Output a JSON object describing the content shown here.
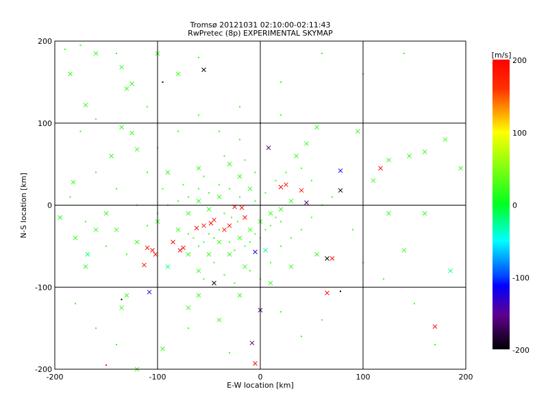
{
  "chart_data": {
    "type": "scatter",
    "title": "Tromsø 20121031 02:10:00-02:11:43",
    "subtitle": "RwPretec (8p) EXPERIMENTAL SKYMAP",
    "xlabel": "E-W location [km]",
    "ylabel": "N-S location [km]",
    "xlim": [
      -200,
      200
    ],
    "ylim": [
      -200,
      200
    ],
    "xticks": [
      -200,
      -100,
      0,
      100,
      200
    ],
    "yticks": [
      -200,
      -100,
      0,
      100,
      200
    ],
    "xtick_labels": [
      "-200",
      "-100",
      "0",
      "100",
      "200"
    ],
    "ytick_labels": [
      "-200",
      "-100",
      "0",
      "100",
      "200"
    ],
    "grid": true,
    "colorbar": {
      "label": "[m/s]",
      "range": [
        -200,
        200
      ],
      "ticks": [
        200,
        100,
        0,
        -100,
        -200
      ],
      "tick_labels": [
        "200",
        "100",
        "0",
        "-100",
        "-200"
      ]
    },
    "point_format": [
      "x_km",
      "y_km",
      "velocity_m_s",
      "marker"
    ],
    "points": [
      [
        -110,
        -52,
        190,
        "x"
      ],
      [
        -105,
        -55,
        195,
        "x"
      ],
      [
        -102,
        -60,
        185,
        "x"
      ],
      [
        -78,
        -55,
        190,
        "x"
      ],
      [
        -75,
        -52,
        195,
        "x"
      ],
      [
        -85,
        -45,
        190,
        "x"
      ],
      [
        -62,
        -28,
        190,
        "x"
      ],
      [
        -55,
        -25,
        185,
        "x"
      ],
      [
        -48,
        -22,
        195,
        "x"
      ],
      [
        -45,
        -18,
        190,
        "x"
      ],
      [
        -35,
        -30,
        190,
        "x"
      ],
      [
        -30,
        -25,
        195,
        "x"
      ],
      [
        -25,
        -2,
        190,
        "x"
      ],
      [
        -18,
        -3,
        185,
        "x"
      ],
      [
        -15,
        -15,
        190,
        "x"
      ],
      [
        20,
        22,
        195,
        "x"
      ],
      [
        25,
        25,
        190,
        "x"
      ],
      [
        40,
        18,
        190,
        "x"
      ],
      [
        45,
        3,
        -160,
        "x"
      ],
      [
        70,
        -65,
        190,
        "x"
      ],
      [
        65,
        -107,
        190,
        "x"
      ],
      [
        -113,
        -73,
        190,
        "x"
      ],
      [
        117,
        45,
        190,
        "x"
      ],
      [
        170,
        -148,
        190,
        "x"
      ],
      [
        -5,
        -193,
        195,
        "x"
      ],
      [
        -8,
        -168,
        -160,
        "x"
      ],
      [
        0,
        -128,
        -160,
        "x"
      ],
      [
        -108,
        -106,
        -120,
        "x"
      ],
      [
        -55,
        165,
        -200,
        "x"
      ],
      [
        78,
        18,
        -200,
        "x"
      ],
      [
        65,
        -65,
        -200,
        "x"
      ],
      [
        -45,
        -95,
        -200,
        "x"
      ],
      [
        -5,
        -57,
        -120,
        "x"
      ],
      [
        78,
        42,
        -110,
        "x"
      ],
      [
        8,
        70,
        -170,
        "x"
      ],
      [
        -160,
        185,
        20,
        "x"
      ],
      [
        -150,
        -195,
        190,
        "dot"
      ],
      [
        -135,
        -115,
        -200,
        "dot"
      ],
      [
        -95,
        150,
        -200,
        "dot"
      ],
      [
        78,
        -105,
        -200,
        "dot"
      ],
      [
        -185,
        160,
        20,
        "x"
      ],
      [
        -170,
        122,
        25,
        "x"
      ],
      [
        -125,
        148,
        15,
        "x"
      ],
      [
        -130,
        142,
        20,
        "x"
      ],
      [
        -135,
        168,
        20,
        "x"
      ],
      [
        -100,
        185,
        20,
        "x"
      ],
      [
        -80,
        160,
        25,
        "x"
      ],
      [
        -140,
        185,
        15,
        "dot"
      ],
      [
        -175,
        90,
        20,
        "dot"
      ],
      [
        -160,
        105,
        25,
        "dot"
      ],
      [
        -135,
        95,
        20,
        "x"
      ],
      [
        -125,
        88,
        20,
        "x"
      ],
      [
        -120,
        68,
        20,
        "x"
      ],
      [
        -145,
        60,
        20,
        "x"
      ],
      [
        -182,
        28,
        20,
        "x"
      ],
      [
        -195,
        -15,
        10,
        "x"
      ],
      [
        -180,
        -40,
        20,
        "x"
      ],
      [
        -170,
        -75,
        15,
        "x"
      ],
      [
        -168,
        -60,
        -20,
        "x"
      ],
      [
        -135,
        -125,
        20,
        "x"
      ],
      [
        -130,
        -110,
        20,
        "x"
      ],
      [
        -95,
        -175,
        20,
        "x"
      ],
      [
        -120,
        -200,
        25,
        "x"
      ],
      [
        -60,
        -110,
        20,
        "x"
      ],
      [
        -40,
        -140,
        25,
        "x"
      ],
      [
        -70,
        -125,
        20,
        "x"
      ],
      [
        -20,
        -110,
        20,
        "x"
      ],
      [
        10,
        -95,
        20,
        "x"
      ],
      [
        30,
        -75,
        20,
        "x"
      ],
      [
        55,
        -60,
        20,
        "x"
      ],
      [
        95,
        90,
        20,
        "x"
      ],
      [
        110,
        30,
        25,
        "x"
      ],
      [
        125,
        55,
        20,
        "x"
      ],
      [
        145,
        60,
        20,
        "x"
      ],
      [
        160,
        65,
        20,
        "x"
      ],
      [
        180,
        80,
        25,
        "x"
      ],
      [
        195,
        45,
        20,
        "x"
      ],
      [
        125,
        -10,
        20,
        "x"
      ],
      [
        140,
        -55,
        25,
        "x"
      ],
      [
        160,
        -10,
        20,
        "x"
      ],
      [
        185,
        -80,
        -20,
        "x"
      ],
      [
        100,
        160,
        20,
        "dot"
      ],
      [
        140,
        185,
        20,
        "dot"
      ],
      [
        60,
        185,
        20,
        "dot"
      ],
      [
        20,
        150,
        20,
        "dot"
      ],
      [
        -20,
        120,
        20,
        "dot"
      ],
      [
        -60,
        180,
        20,
        "dot"
      ],
      [
        -110,
        120,
        20,
        "dot"
      ],
      [
        55,
        95,
        20,
        "x"
      ],
      [
        45,
        75,
        20,
        "x"
      ],
      [
        35,
        60,
        20,
        "x"
      ],
      [
        -30,
        50,
        20,
        "x"
      ],
      [
        -60,
        45,
        20,
        "x"
      ],
      [
        -90,
        40,
        20,
        "x"
      ],
      [
        -150,
        -10,
        20,
        "x"
      ],
      [
        -140,
        -30,
        25,
        "x"
      ],
      [
        -120,
        -45,
        20,
        "x"
      ],
      [
        -160,
        -30,
        20,
        "x"
      ],
      [
        -100,
        -20,
        20,
        "x"
      ],
      [
        -90,
        -75,
        -20,
        "x"
      ],
      [
        -70,
        -60,
        20,
        "x"
      ],
      [
        -60,
        -80,
        20,
        "x"
      ],
      [
        -50,
        -60,
        20,
        "x"
      ],
      [
        -40,
        -45,
        20,
        "x"
      ],
      [
        -30,
        -60,
        20,
        "x"
      ],
      [
        -20,
        -40,
        20,
        "x"
      ],
      [
        -10,
        -30,
        20,
        "x"
      ],
      [
        0,
        -20,
        20,
        "x"
      ],
      [
        10,
        -10,
        20,
        "x"
      ],
      [
        20,
        -5,
        20,
        "x"
      ],
      [
        30,
        5,
        20,
        "x"
      ],
      [
        -10,
        20,
        20,
        "x"
      ],
      [
        -20,
        35,
        20,
        "x"
      ],
      [
        -40,
        10,
        20,
        "x"
      ],
      [
        -50,
        -5,
        20,
        "x"
      ],
      [
        -60,
        5,
        20,
        "x"
      ],
      [
        -70,
        -10,
        20,
        "x"
      ],
      [
        -80,
        -30,
        20,
        "x"
      ],
      [
        -15,
        -75,
        20,
        "x"
      ],
      [
        5,
        -55,
        -30,
        "x"
      ],
      [
        -35,
        -10,
        20,
        "dot"
      ],
      [
        -28,
        -15,
        25,
        "dot"
      ],
      [
        -22,
        -20,
        20,
        "dot"
      ],
      [
        -40,
        -30,
        20,
        "dot"
      ],
      [
        -45,
        -40,
        10,
        "dot"
      ],
      [
        -50,
        -35,
        20,
        "dot"
      ],
      [
        -55,
        -45,
        -25,
        "dot"
      ],
      [
        -60,
        -50,
        20,
        "dot"
      ],
      [
        -65,
        -40,
        20,
        "dot"
      ],
      [
        -70,
        -35,
        20,
        "dot"
      ],
      [
        -30,
        -45,
        20,
        "dot"
      ],
      [
        -25,
        -55,
        20,
        "dot"
      ],
      [
        -15,
        -50,
        -20,
        "dot"
      ],
      [
        -10,
        -45,
        20,
        "dot"
      ],
      [
        -5,
        -35,
        20,
        "dot"
      ],
      [
        0,
        -40,
        20,
        "dot"
      ],
      [
        5,
        -30,
        20,
        "dot"
      ],
      [
        10,
        -25,
        20,
        "dot"
      ],
      [
        15,
        -15,
        20,
        "dot"
      ],
      [
        20,
        -20,
        20,
        "dot"
      ],
      [
        -20,
        10,
        20,
        "dot"
      ],
      [
        -30,
        20,
        20,
        "dot"
      ],
      [
        -40,
        25,
        20,
        "dot"
      ],
      [
        -50,
        15,
        20,
        "dot"
      ],
      [
        -60,
        20,
        20,
        "dot"
      ],
      [
        -70,
        10,
        20,
        "dot"
      ],
      [
        -80,
        5,
        20,
        "dot"
      ],
      [
        -90,
        0,
        20,
        "dot"
      ],
      [
        -100,
        -10,
        20,
        "dot"
      ],
      [
        -110,
        -25,
        20,
        "dot"
      ],
      [
        -5,
        5,
        20,
        "dot"
      ],
      [
        5,
        15,
        20,
        "dot"
      ],
      [
        15,
        30,
        20,
        "dot"
      ],
      [
        25,
        40,
        20,
        "dot"
      ],
      [
        -5,
        40,
        20,
        "dot"
      ],
      [
        -15,
        55,
        20,
        "dot"
      ],
      [
        -35,
        60,
        20,
        "dot"
      ],
      [
        -55,
        35,
        20,
        "dot"
      ],
      [
        -75,
        25,
        20,
        "dot"
      ],
      [
        -95,
        20,
        20,
        "dot"
      ],
      [
        -45,
        -70,
        20,
        "dot"
      ],
      [
        -55,
        -90,
        20,
        "dot"
      ],
      [
        -35,
        -85,
        20,
        "dot"
      ],
      [
        -25,
        -95,
        20,
        "dot"
      ],
      [
        -10,
        -80,
        20,
        "dot"
      ],
      [
        0,
        -90,
        20,
        "dot"
      ],
      [
        10,
        -70,
        20,
        "dot"
      ],
      [
        20,
        -50,
        20,
        "dot"
      ],
      [
        30,
        -40,
        20,
        "dot"
      ],
      [
        40,
        -30,
        20,
        "dot"
      ],
      [
        50,
        -15,
        20,
        "dot"
      ],
      [
        60,
        0,
        20,
        "dot"
      ],
      [
        70,
        10,
        20,
        "dot"
      ],
      [
        50,
        30,
        20,
        "dot"
      ],
      [
        40,
        45,
        20,
        "dot"
      ],
      [
        -130,
        -60,
        20,
        "dot"
      ],
      [
        -150,
        -50,
        20,
        "dot"
      ],
      [
        -170,
        -20,
        20,
        "dot"
      ],
      [
        -185,
        10,
        20,
        "dot"
      ],
      [
        -160,
        40,
        20,
        "dot"
      ],
      [
        -140,
        20,
        20,
        "dot"
      ],
      [
        -120,
        0,
        20,
        "dot"
      ],
      [
        -110,
        40,
        20,
        "dot"
      ],
      [
        -100,
        70,
        20,
        "dot"
      ],
      [
        -80,
        90,
        20,
        "dot"
      ],
      [
        -60,
        110,
        20,
        "dot"
      ],
      [
        -40,
        90,
        20,
        "dot"
      ],
      [
        -20,
        80,
        20,
        "dot"
      ],
      [
        0,
        100,
        20,
        "dot"
      ],
      [
        20,
        110,
        20,
        "dot"
      ],
      [
        90,
        -30,
        20,
        "dot"
      ],
      [
        100,
        -70,
        20,
        "dot"
      ],
      [
        120,
        -90,
        20,
        "dot"
      ],
      [
        150,
        -120,
        20,
        "dot"
      ],
      [
        170,
        -170,
        20,
        "dot"
      ],
      [
        -180,
        -120,
        20,
        "dot"
      ],
      [
        -160,
        -150,
        20,
        "dot"
      ],
      [
        -140,
        -170,
        20,
        "dot"
      ],
      [
        -70,
        -150,
        20,
        "dot"
      ],
      [
        -30,
        -180,
        20,
        "dot"
      ],
      [
        20,
        -130,
        20,
        "dot"
      ],
      [
        40,
        -160,
        20,
        "dot"
      ],
      [
        60,
        -140,
        20,
        "dot"
      ],
      [
        -190,
        190,
        20,
        "dot"
      ],
      [
        -175,
        195,
        20,
        "dot"
      ]
    ]
  }
}
